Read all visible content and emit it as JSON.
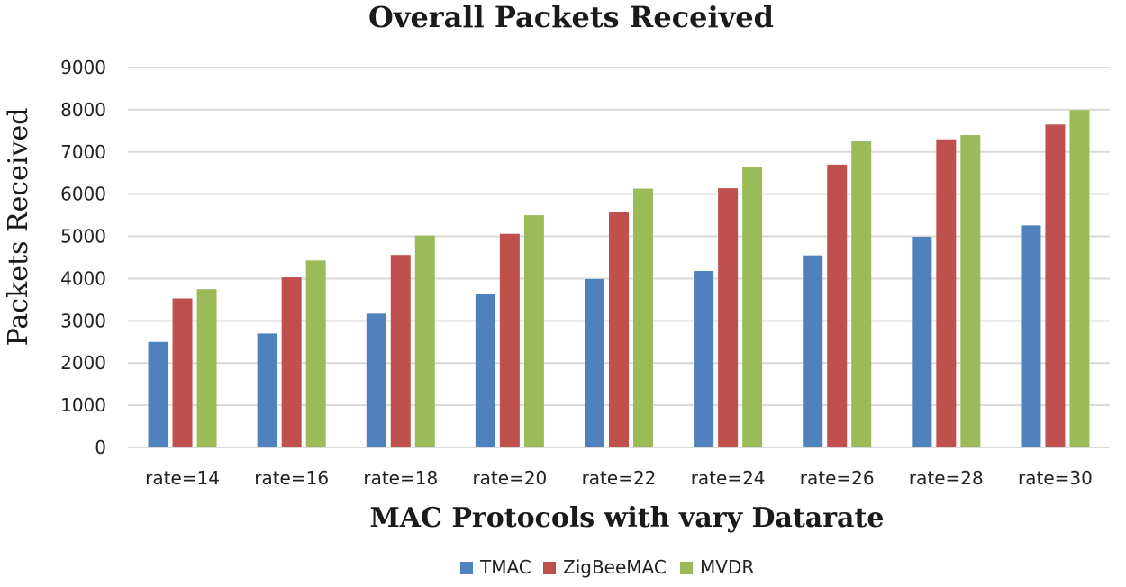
{
  "chart_data": {
    "type": "bar",
    "title": "Overall Packets Received",
    "xlabel": "MAC Protocols with vary Datarate",
    "ylabel": "Packets Received",
    "categories": [
      "rate=14",
      "rate=16",
      "rate=18",
      "rate=20",
      "rate=22",
      "rate=24",
      "rate=26",
      "rate=28",
      "rate=30"
    ],
    "ylim": [
      0,
      9000
    ],
    "yticks": [
      0,
      1000,
      2000,
      3000,
      4000,
      5000,
      6000,
      7000,
      8000,
      9000
    ],
    "grid": true,
    "legend_position": "bottom",
    "series": [
      {
        "name": "TMAC",
        "color": "#4f81bd",
        "values": [
          2500,
          2700,
          3170,
          3640,
          3990,
          4180,
          4550,
          4990,
          5260
        ]
      },
      {
        "name": "ZigBeeMAC",
        "color": "#c0504d",
        "values": [
          3530,
          4030,
          4560,
          5060,
          5580,
          6140,
          6700,
          7300,
          7650
        ]
      },
      {
        "name": "MVDR",
        "color": "#9bbb59",
        "values": [
          3750,
          4430,
          5020,
          5500,
          6130,
          6650,
          7250,
          7400,
          7990
        ]
      }
    ]
  }
}
